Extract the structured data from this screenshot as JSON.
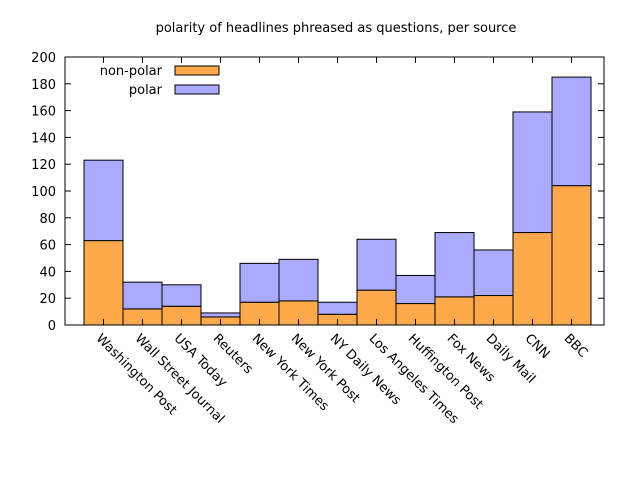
{
  "chart_data": {
    "type": "bar",
    "stacked": true,
    "title": "polarity of headlines phreased as questions, per source",
    "xlabel": "",
    "ylabel": "",
    "ylim": [
      0,
      200
    ],
    "yticks": [
      0,
      20,
      40,
      60,
      80,
      100,
      120,
      140,
      160,
      180,
      200
    ],
    "categories": [
      "Washington Post",
      "Wall Street Journal",
      "USA Today",
      "Reuters",
      "New York Times",
      "New York Post",
      "NY Daily News",
      "Los Angeles Times",
      "Huffington Post",
      "Fox News",
      "Daily Mail",
      "CNN",
      "BBC"
    ],
    "series": [
      {
        "name": "non-polar",
        "color": "#ffa94d",
        "values": [
          63,
          12,
          14,
          6,
          17,
          18,
          8,
          26,
          16,
          21,
          22,
          69,
          104
        ]
      },
      {
        "name": "polar",
        "color": "#aaaaff",
        "values": [
          60,
          20,
          16,
          3,
          29,
          31,
          9,
          38,
          21,
          48,
          34,
          90,
          81
        ]
      }
    ],
    "legend_position": "top-left",
    "grid": false
  }
}
